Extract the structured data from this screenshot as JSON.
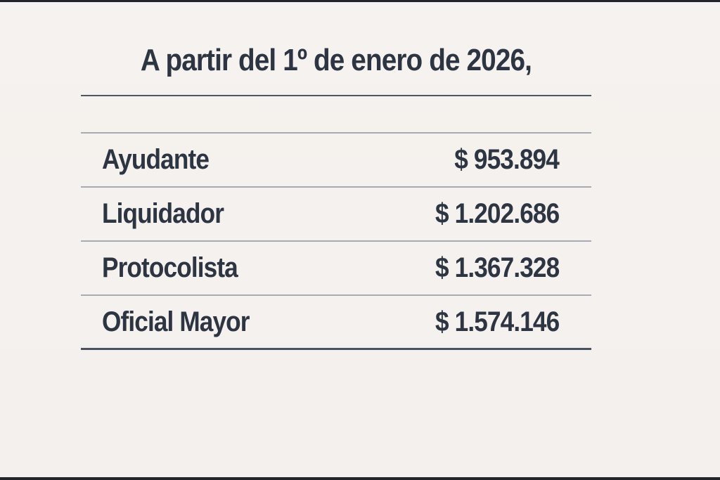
{
  "page": {
    "background_color": "#f5f1ee",
    "letterbox_color": "#23232b",
    "text_color": "#2e3542",
    "dark_rule_color": "#4e5565",
    "light_rule_color": "#a6abb4"
  },
  "title": {
    "text": "A partir del 1º de enero de 2026,"
  },
  "table": {
    "rows": [
      {
        "label": "Ayudante",
        "value": "$ 953.894"
      },
      {
        "label": "Liquidador",
        "value": "$ 1.202.686"
      },
      {
        "label": "Protocolista",
        "value": "$ 1.367.328"
      },
      {
        "label": "Oficial Mayor",
        "value": "$ 1.574.146"
      }
    ]
  },
  "chart_data": {
    "type": "table",
    "title": "A partir del 1º de enero de 2026,",
    "rows": [
      {
        "label": "Ayudante",
        "value_text": "$ 953.894",
        "value": 953894
      },
      {
        "label": "Liquidador",
        "value_text": "$ 1.202.686",
        "value": 1202686
      },
      {
        "label": "Protocolista",
        "value_text": "$ 1.367.328",
        "value": 1367328
      },
      {
        "label": "Oficial Mayor",
        "value_text": "$ 1.574.146",
        "value": 1574146
      }
    ],
    "currency": "$",
    "layout": "two-column table, labels left-aligned, amounts right-aligned, thin gray row separators, heavier dark top and bottom rules"
  }
}
